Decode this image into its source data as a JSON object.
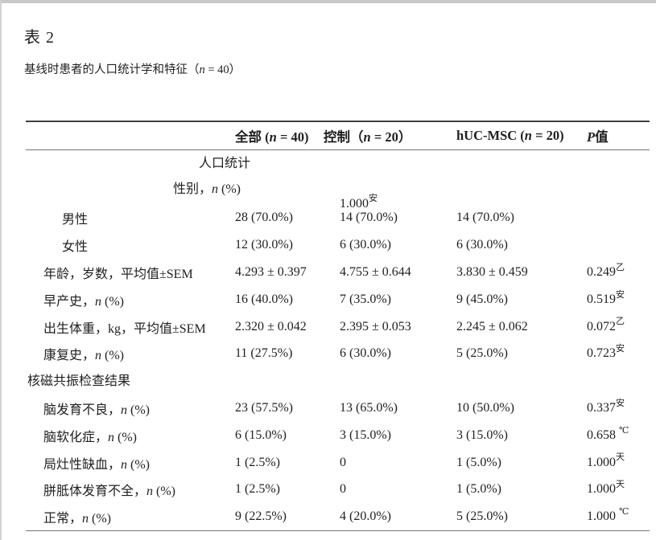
{
  "page": {
    "title": "表 2",
    "caption_pre": "基线时患者的人口统计学和特征（",
    "caption_var": "n",
    "caption_post": " = 40）"
  },
  "table": {
    "headers": [
      {
        "pre": "全部 (",
        "var": "n",
        "post": " = 40)"
      },
      {
        "pre": "控制（",
        "var": "n",
        "post": " = 20）"
      },
      {
        "pre": "hUC-MSC (",
        "var": "n",
        "post": " = 20)"
      },
      {
        "pre": "",
        "var": "P",
        "post": "值"
      }
    ],
    "rows": [
      {
        "cls": "seccenter",
        "label_pre": "人口统计",
        "label_var": "",
        "label_post": "",
        "c1": "",
        "c2": "",
        "c3": "",
        "p": "",
        "p_sup": ""
      },
      {
        "cls": "secsex",
        "label_pre": "性别，",
        "label_var": "n",
        "label_post": " (%)",
        "c1": "",
        "c2": "",
        "c3": "",
        "p": "1.000",
        "p_sup": "安"
      },
      {
        "cls": "subitem",
        "label_pre": "男性",
        "label_var": "",
        "label_post": "",
        "c1": "28 (70.0%)",
        "c2": "14 (70.0%)",
        "c3": "14 (70.0%)",
        "p": "",
        "p_sup": ""
      },
      {
        "cls": "subitem",
        "label_pre": "女性",
        "label_var": "",
        "label_post": "",
        "c1": "12 (30.0%)",
        "c2": "6 (30.0%)",
        "c3": "6 (30.0%)",
        "p": "",
        "p_sup": ""
      },
      {
        "cls": "item",
        "label_pre": "年龄，岁数，平均值±SEM",
        "label_var": "",
        "label_post": "",
        "c1": "4.293 ± 0.397",
        "c2": "4.755 ± 0.644",
        "c3": "3.830 ± 0.459",
        "p": "0.249",
        "p_sup": "乙"
      },
      {
        "cls": "item",
        "label_pre": "早产史，",
        "label_var": "n",
        "label_post": " (%)",
        "c1": "16 (40.0%)",
        "c2": "7 (35.0%)",
        "c3": "9 (45.0%)",
        "p": "0.519",
        "p_sup": "安"
      },
      {
        "cls": "item",
        "label_pre": "出生体重，kg，平均值±SEM",
        "label_var": "",
        "label_post": "",
        "c1": "2.320 ± 0.042",
        "c2": "2.395 ± 0.053",
        "c3": "2.245 ± 0.062",
        "p": "0.072",
        "p_sup": "乙"
      },
      {
        "cls": "item",
        "label_pre": "康复史，",
        "label_var": "n",
        "label_post": " (%)",
        "c1": "11 (27.5%)",
        "c2": "6 (30.0%)",
        "c3": "5 (25.0%)",
        "p": "0.723",
        "p_sup": "安"
      },
      {
        "cls": "secleft",
        "label_pre": "核磁共振检查结果",
        "label_var": "",
        "label_post": "",
        "c1": "",
        "c2": "",
        "c3": "",
        "p": "",
        "p_sup": ""
      },
      {
        "cls": "item",
        "label_pre": "脑发育不良，",
        "label_var": "n",
        "label_post": " (%)",
        "c1": "23 (57.5%)",
        "c2": "13 (65.0%)",
        "c3": "10 (50.0%)",
        "p": "0.337",
        "p_sup": "安"
      },
      {
        "cls": "item",
        "label_pre": "脑软化症，",
        "label_var": "n",
        "label_post": " (%)",
        "c1": "6 (15.0%)",
        "c2": "3 (15.0%)",
        "c3": "3 (15.0%)",
        "p": "0.658 ",
        "p_sup": "℃"
      },
      {
        "cls": "item",
        "label_pre": "局灶性缺血，",
        "label_var": "n",
        "label_post": " (%)",
        "c1": "1 (2.5%)",
        "c2": "0",
        "c3": "1 (5.0%)",
        "p": "1.000",
        "p_sup": "天"
      },
      {
        "cls": "item",
        "label_pre": "胼胝体发育不全，",
        "label_var": "n",
        "label_post": " (%)",
        "c1": "1 (2.5%)",
        "c2": "0",
        "c3": "1 (5.0%)",
        "p": "1.000",
        "p_sup": "天"
      },
      {
        "cls": "item",
        "label_pre": "正常，",
        "label_var": "n",
        "label_post": " (%)",
        "c1": "9 (22.5%)",
        "c2": "4 (20.0%)",
        "c3": "5 (25.0%)",
        "p": "1.000 ",
        "p_sup": "℃"
      }
    ]
  }
}
